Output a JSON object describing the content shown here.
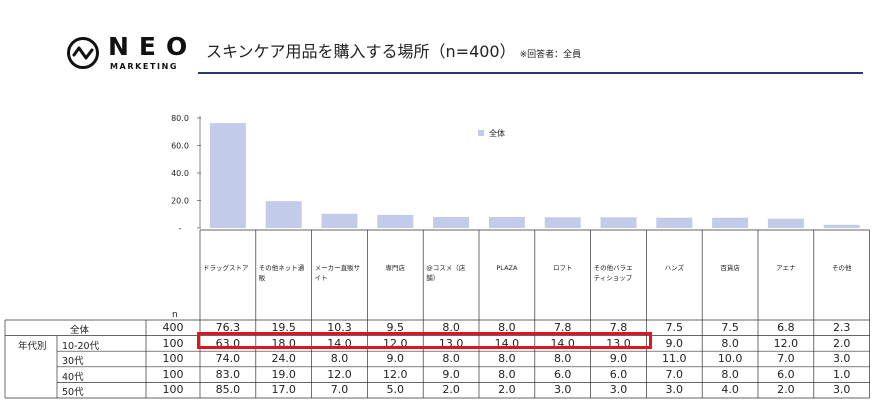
{
  "brand": {
    "name": "NEO",
    "sub": "MARKETING"
  },
  "header": {
    "title": "スキンケア用品を購入する場所（n=400）",
    "note": "※回答者：全員"
  },
  "colors": {
    "bar": "#c3cbeb",
    "highlight": "#e0141e",
    "rule": "#2b3a6b"
  },
  "chart_data": {
    "type": "bar",
    "categories": [
      "ドラッグストア",
      "その他ネット通販",
      "メーカー直販サイト",
      "専門店",
      "@コスメ（店舗）",
      "PLAZA",
      "ロフト",
      "その他バラエティショップ",
      "ハンズ",
      "百貨店",
      "アエナ",
      "その他"
    ],
    "category_display": [
      "ドラッグストア",
      "その他ネット通\n販",
      "メーカー直販サ\nイト",
      "専門店",
      "@コスメ（店\n舗）",
      "PLAZA",
      "ロフト",
      "その他バラエ\nティショップ",
      "ハンズ",
      "百貨店",
      "アエナ",
      "その他"
    ],
    "series": [
      {
        "name": "全体",
        "values": [
          76.3,
          19.5,
          10.3,
          9.5,
          8.0,
          8.0,
          7.8,
          7.8,
          7.5,
          7.5,
          6.8,
          2.3
        ]
      }
    ],
    "yticks": [
      "80.0",
      "60.0",
      "40.0",
      "20.0",
      "-"
    ],
    "ylim": [
      0,
      80
    ],
    "legend": "top-center"
  },
  "table": {
    "n_header": "n",
    "group_label": "年代別",
    "rows": [
      {
        "label": "全体",
        "n": "400",
        "values": [
          "76.3",
          "19.5",
          "10.3",
          "9.5",
          "8.0",
          "8.0",
          "7.8",
          "7.8",
          "7.5",
          "7.5",
          "6.8",
          "2.3"
        ]
      },
      {
        "label": "10-20代",
        "n": "100",
        "values": [
          "63.0",
          "18.0",
          "14.0",
          "12.0",
          "13.0",
          "14.0",
          "14.0",
          "13.0",
          "9.0",
          "8.0",
          "12.0",
          "2.0"
        ]
      },
      {
        "label": "30代",
        "n": "100",
        "values": [
          "74.0",
          "24.0",
          "8.0",
          "9.0",
          "8.0",
          "8.0",
          "8.0",
          "9.0",
          "11.0",
          "10.0",
          "7.0",
          "3.0"
        ]
      },
      {
        "label": "40代",
        "n": "100",
        "values": [
          "83.0",
          "19.0",
          "12.0",
          "12.0",
          "9.0",
          "8.0",
          "6.0",
          "6.0",
          "7.0",
          "8.0",
          "6.0",
          "1.0"
        ]
      },
      {
        "label": "50代",
        "n": "100",
        "values": [
          "85.0",
          "17.0",
          "7.0",
          "5.0",
          "2.0",
          "2.0",
          "3.0",
          "3.0",
          "3.0",
          "4.0",
          "2.0",
          "3.0"
        ]
      }
    ]
  }
}
